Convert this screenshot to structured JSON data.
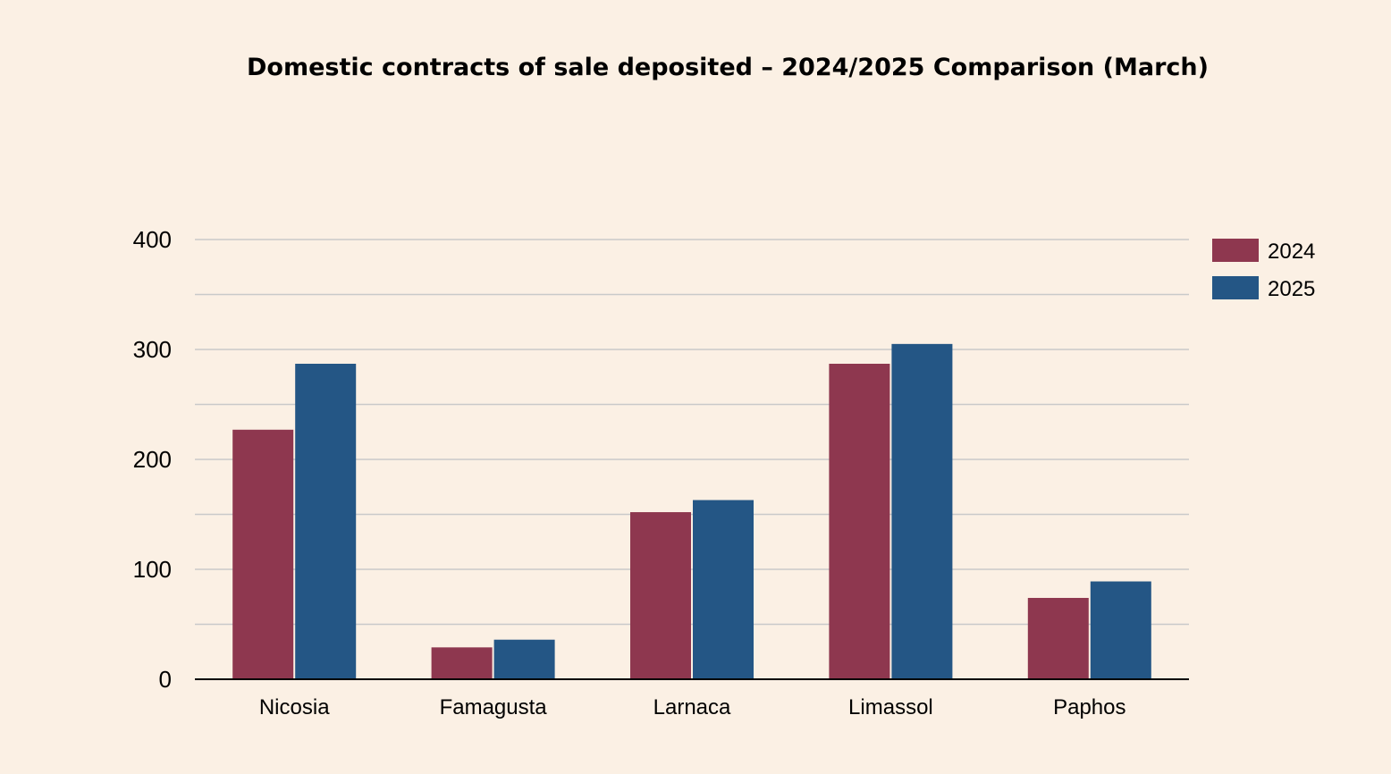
{
  "chart_data": {
    "type": "bar",
    "title": "Domestic contracts of sale deposited – 2024/2025 Comparison (March)",
    "categories": [
      "Nicosia",
      "Famagusta",
      "Larnaca",
      "Limassol",
      "Paphos"
    ],
    "series": [
      {
        "name": "2024",
        "values": [
          227,
          29,
          152,
          287,
          74
        ],
        "color": "#8e374f"
      },
      {
        "name": "2025",
        "values": [
          287,
          36,
          163,
          305,
          89
        ],
        "color": "#245685"
      }
    ],
    "ylim": [
      0,
      400
    ],
    "yticks": [
      0,
      100,
      200,
      300,
      400
    ],
    "minor_grid_step": 50,
    "grid": true,
    "legend_position": "right",
    "xlabel": "",
    "ylabel": ""
  }
}
